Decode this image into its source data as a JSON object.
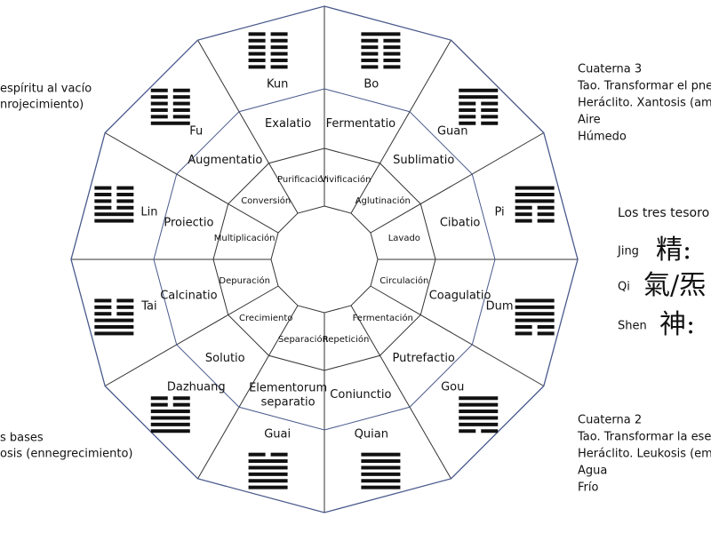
{
  "sectors": [
    {
      "name": "Bo",
      "operation": "Fermentatio",
      "process": "Vivificación"
    },
    {
      "name": "Guan",
      "operation": "Sublimatio",
      "process": "Aglutinación"
    },
    {
      "name": "Pi",
      "operation": "Cibatio",
      "process": "Lavado"
    },
    {
      "name": "Dum",
      "operation": "Coagulatio",
      "process": "Circulación"
    },
    {
      "name": "Gou",
      "operation": "Putrefactio",
      "process": "Fermentación"
    },
    {
      "name": "Quian",
      "operation": "Coniunctio",
      "process": "Repetición"
    },
    {
      "name": "Guai",
      "operation": "Elementorum separatio",
      "process": "Separación"
    },
    {
      "name": "Dazhuang",
      "operation": "Solutio",
      "process": "Crecimiento"
    },
    {
      "name": "Tai",
      "operation": "Calcinatio",
      "process": "Depuración"
    },
    {
      "name": "Lin",
      "operation": "Proiectio",
      "process": "Multiplicación"
    },
    {
      "name": "Fu",
      "operation": "Augmentatio",
      "process": "Conversión"
    },
    {
      "name": "Kun",
      "operation": "Exalatio",
      "process": "Purificación"
    }
  ],
  "left_notes": {
    "top": [
      "espíritu al vacío",
      "nrojecimiento)"
    ],
    "bottom": [
      "s bases",
      "osis (ennegrecimiento)"
    ]
  },
  "cuaterna_3": [
    "Cuaterna 3",
    "Tao. Transformar el pne",
    "Heráclito. Xantosis (ama",
    "Aire",
    "Húmedo"
  ],
  "treasures": {
    "title": "Los tres tesoro",
    "items": [
      {
        "name": "Jing",
        "glyph": "精:"
      },
      {
        "name": "Qi",
        "glyph": "氣/炁"
      },
      {
        "name": "Shen",
        "glyph": "神:"
      }
    ]
  },
  "cuaterna_2": [
    "Cuaterna 2",
    "Tao. Transformar la ese",
    "Heráclito. Leukosis (emb",
    "Agua",
    "Frío"
  ]
}
